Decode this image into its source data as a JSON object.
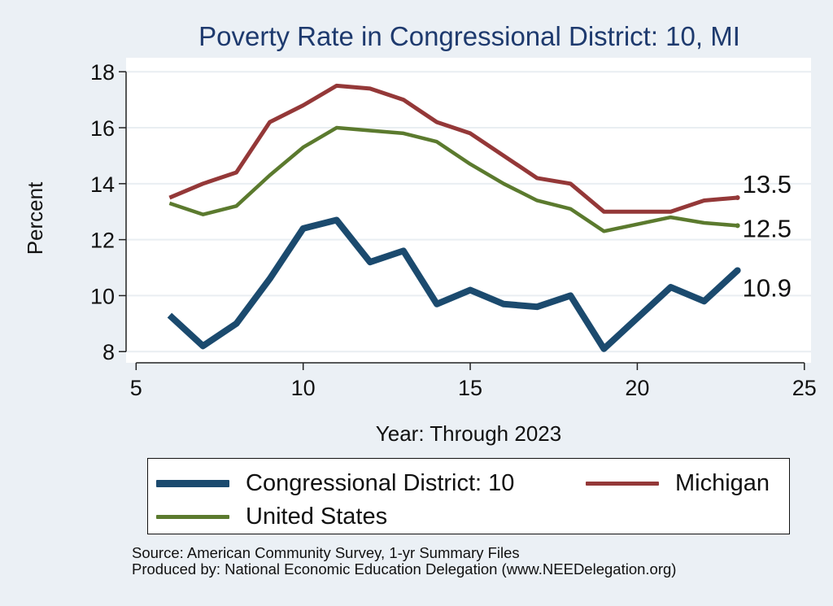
{
  "chart_data": {
    "type": "line",
    "title": "Poverty Rate in Congressional District:  10, MI",
    "xlabel": "Year: Through 2023",
    "ylabel": "Percent",
    "xlim": [
      4.7,
      25.2
    ],
    "ylim": [
      7.6,
      18.5
    ],
    "xticks": [
      5,
      10,
      15,
      20,
      25
    ],
    "yticks": [
      8,
      10,
      12,
      14,
      16,
      18
    ],
    "grid": true,
    "legend_position": "bottom",
    "series": [
      {
        "name": "Congressional District:  10",
        "color": "#1b4a6e",
        "x": [
          6,
          7,
          8,
          9,
          10,
          11,
          12,
          13,
          14,
          15,
          16,
          17,
          18,
          19,
          20,
          21,
          22,
          23
        ],
        "y": [
          9.3,
          8.2,
          9.0,
          10.6,
          12.4,
          12.7,
          11.2,
          11.6,
          9.7,
          10.2,
          9.7,
          9.6,
          10.0,
          8.1,
          9.2,
          10.3,
          9.8,
          10.9
        ],
        "end_label": "10.9"
      },
      {
        "name": "Michigan",
        "color": "#943838",
        "x": [
          6,
          7,
          8,
          9,
          10,
          11,
          12,
          13,
          14,
          15,
          16,
          17,
          18,
          19,
          21,
          22,
          23
        ],
        "y": [
          13.5,
          14.0,
          14.4,
          16.2,
          16.8,
          17.5,
          17.4,
          17.0,
          16.2,
          15.8,
          15.0,
          14.2,
          14.0,
          13.0,
          13.0,
          13.4,
          13.5
        ],
        "end_label": "13.5"
      },
      {
        "name": "United States",
        "color": "#5b7a2e",
        "x": [
          6,
          7,
          8,
          9,
          10,
          11,
          12,
          13,
          14,
          15,
          16,
          17,
          18,
          19,
          21,
          22,
          23
        ],
        "y": [
          13.3,
          12.9,
          13.2,
          14.3,
          15.3,
          16.0,
          15.9,
          15.8,
          15.5,
          14.7,
          14.0,
          13.4,
          13.1,
          12.3,
          12.8,
          12.6,
          12.5
        ],
        "end_label": "12.5"
      }
    ]
  },
  "legend": {
    "district": "Congressional District:  10",
    "michigan": "Michigan",
    "us": "United States"
  },
  "notes": {
    "source": "Source: American Community Survey, 1-yr Summary Files",
    "produced": "Produced by: National Economic Education Delegation (www.NEEDelegation.org)"
  }
}
